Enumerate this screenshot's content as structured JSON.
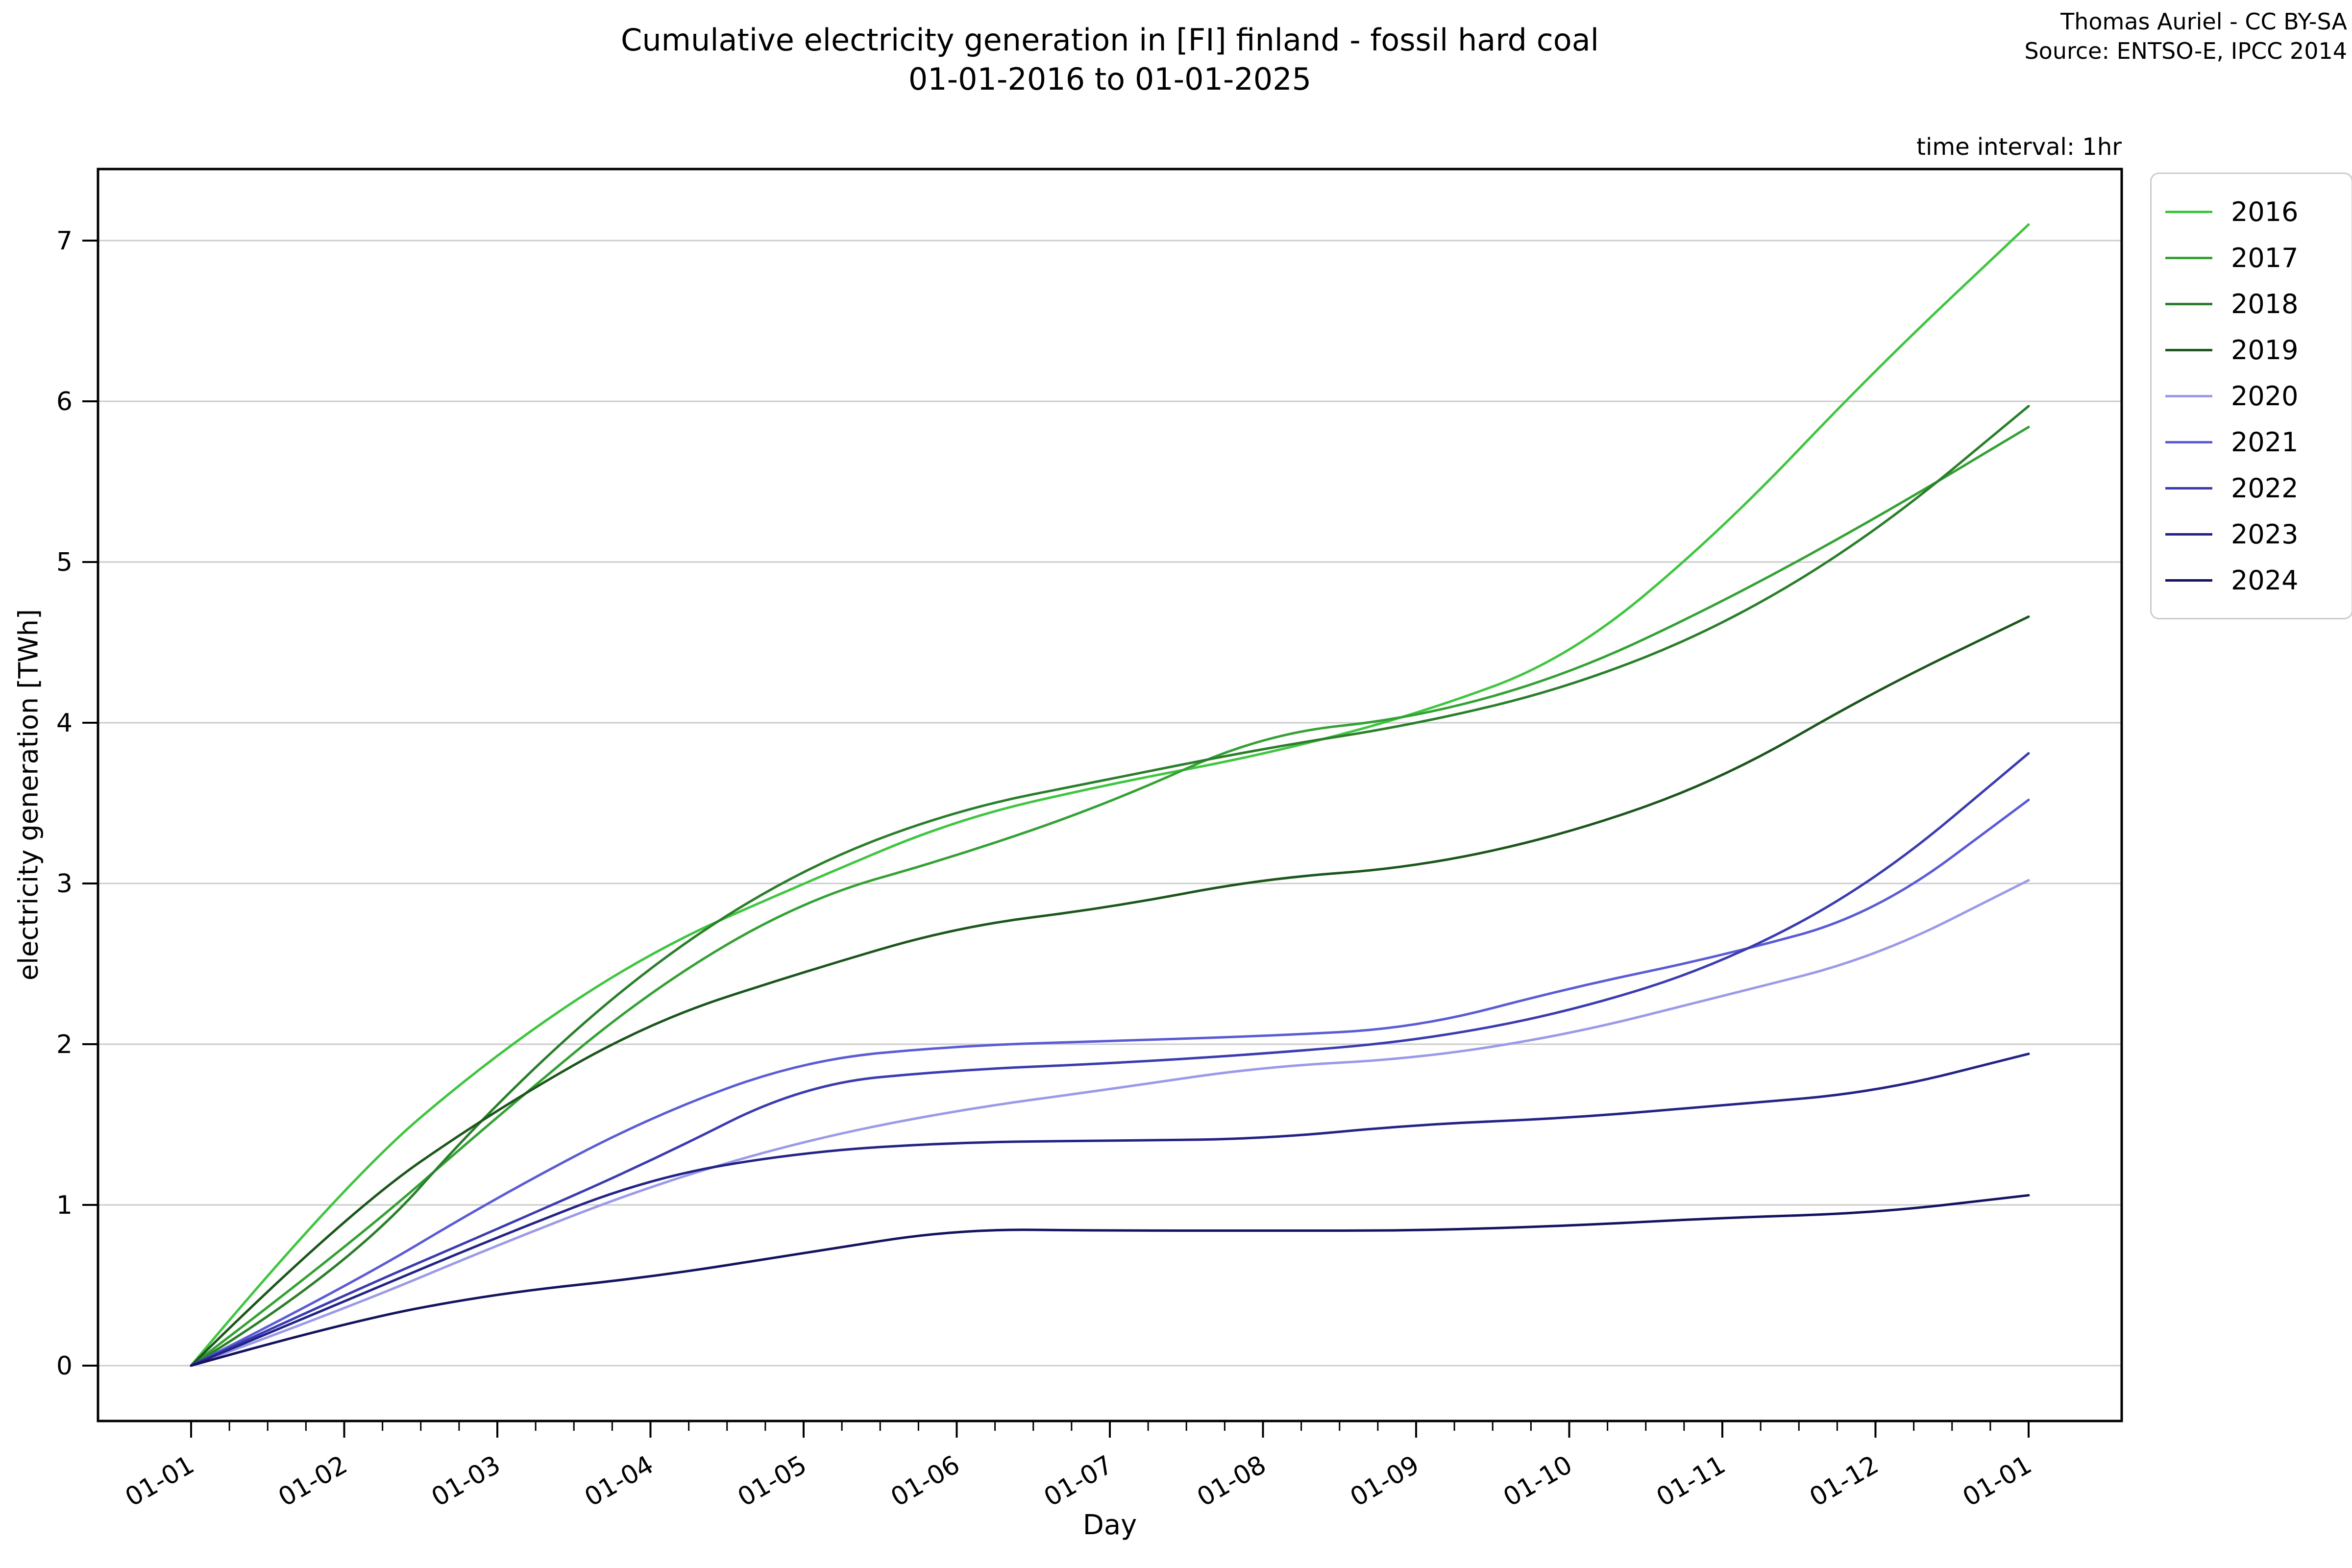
{
  "header": {
    "title_line1": "Cumulative electricity generation in [FI] finland - fossil hard coal",
    "title_line2": "01-01-2016 to 01-01-2025",
    "attribution_line1": "Thomas Auriel - CC BY-SA",
    "attribution_line2": "Source: ENTSO-E, IPCC 2014",
    "time_interval": "time interval: 1hr"
  },
  "axes": {
    "x_label": "Day",
    "y_label": "electricity generation [TWh]",
    "x_ticklabels": [
      "01-01",
      "01-02",
      "01-03",
      "01-04",
      "01-05",
      "01-06",
      "01-07",
      "01-08",
      "01-09",
      "01-10",
      "01-11",
      "01-12",
      "01-01"
    ],
    "y_ticks": [
      0,
      1,
      2,
      3,
      4,
      5,
      6,
      7
    ]
  },
  "chart_data": {
    "type": "line",
    "title": "Cumulative electricity generation in [FI] finland - fossil hard coal 01-01-2016 to 01-01-2025",
    "xlabel": "Day",
    "ylabel": "electricity generation [TWh]",
    "x": [
      "01-01",
      "01-02",
      "01-03",
      "01-04",
      "01-05",
      "01-06",
      "01-07",
      "01-08",
      "01-09",
      "01-10",
      "01-11",
      "01-12",
      "01-01"
    ],
    "x_note": "values sampled at each month start over one year; source data is hourly cumulative generation",
    "ylim": [
      -0.35,
      7.44
    ],
    "grid": "horizontal",
    "gridline_color": "#cccccc",
    "legend_position": "outside upper right",
    "series": [
      {
        "name": "2016",
        "color": "#3fc53f",
        "values": [
          0,
          1.14,
          1.95,
          2.58,
          3.0,
          3.4,
          3.62,
          3.8,
          4.05,
          4.4,
          5.2,
          6.2,
          7.1
        ]
      },
      {
        "name": "2017",
        "color": "#34a134",
        "values": [
          0,
          0.72,
          1.55,
          2.34,
          2.9,
          3.17,
          3.5,
          3.93,
          4.03,
          4.3,
          4.75,
          5.27,
          5.84
        ]
      },
      {
        "name": "2018",
        "color": "#2a7e2a",
        "values": [
          0,
          0.58,
          1.65,
          2.5,
          3.1,
          3.46,
          3.65,
          3.84,
          3.99,
          4.22,
          4.6,
          5.18,
          5.97
        ]
      },
      {
        "name": "2019",
        "color": "#1c561c",
        "values": [
          0,
          0.94,
          1.6,
          2.14,
          2.45,
          2.73,
          2.85,
          3.03,
          3.1,
          3.31,
          3.65,
          4.2,
          4.66
        ]
      },
      {
        "name": "2020",
        "color": "#9a9ae9",
        "values": [
          0,
          0.35,
          0.75,
          1.12,
          1.4,
          1.59,
          1.72,
          1.86,
          1.91,
          2.06,
          2.3,
          2.54,
          3.02
        ]
      },
      {
        "name": "2021",
        "color": "#5b5bd6",
        "values": [
          0,
          0.48,
          1.05,
          1.55,
          1.9,
          1.99,
          2.02,
          2.05,
          2.1,
          2.35,
          2.55,
          2.81,
          3.52
        ]
      },
      {
        "name": "2022",
        "color": "#3b3bb0",
        "values": [
          0,
          0.44,
          0.85,
          1.27,
          1.75,
          1.84,
          1.88,
          1.94,
          2.02,
          2.2,
          2.5,
          3.01,
          3.81
        ]
      },
      {
        "name": "2023",
        "color": "#232387",
        "values": [
          0,
          0.4,
          0.8,
          1.17,
          1.33,
          1.39,
          1.4,
          1.41,
          1.5,
          1.54,
          1.62,
          1.7,
          1.94
        ]
      },
      {
        "name": "2024",
        "color": "#131360",
        "values": [
          0,
          0.27,
          0.45,
          0.55,
          0.7,
          0.85,
          0.84,
          0.84,
          0.84,
          0.87,
          0.92,
          0.95,
          1.06
        ]
      }
    ]
  }
}
